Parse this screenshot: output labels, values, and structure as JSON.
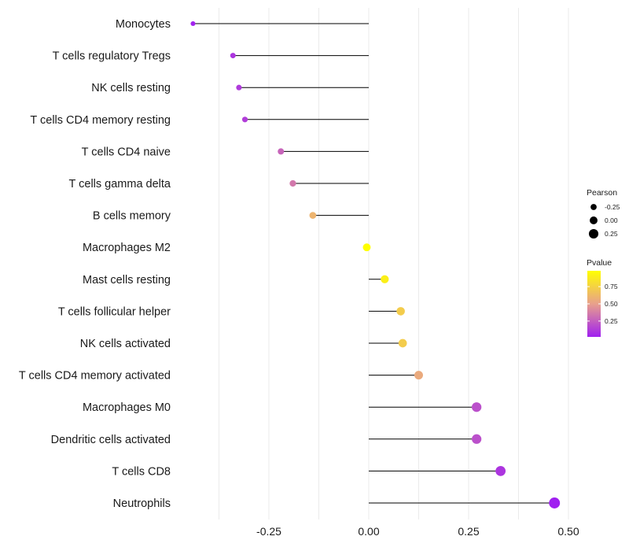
{
  "chart_data": {
    "type": "lollipop",
    "categories": [
      "Monocytes",
      "T cells regulatory  Tregs",
      "NK cells resting",
      "T cells CD4 memory resting",
      "T cells CD4 naive",
      "T cells gamma delta",
      "B cells memory",
      "Macrophages M2",
      "Mast cells resting",
      "T cells follicular helper",
      "NK cells activated",
      "T cells CD4 memory activated",
      "Macrophages M0",
      "Dendritic cells activated",
      "T cells CD8",
      "Neutrophils"
    ],
    "pearson": [
      -0.44,
      -0.34,
      -0.325,
      -0.31,
      -0.22,
      -0.19,
      -0.14,
      -0.005,
      0.04,
      0.08,
      0.085,
      0.125,
      0.27,
      0.27,
      0.33,
      0.465
    ],
    "pvalue": [
      0.03,
      0.1,
      0.12,
      0.13,
      0.28,
      0.35,
      0.6,
      0.98,
      0.9,
      0.72,
      0.72,
      0.55,
      0.2,
      0.2,
      0.1,
      0.02
    ],
    "xlim": [
      -0.5,
      0.5
    ],
    "x_ticks": [
      -0.25,
      0.0,
      0.25,
      0.5
    ],
    "x_tick_labels": [
      "-0.25",
      "0.00",
      "0.25",
      "0.50"
    ],
    "xlabel": "",
    "ylabel": "",
    "grid": true,
    "legend_position": "right",
    "size_legend": {
      "title": "Pearson",
      "entries": [
        {
          "value": -0.25,
          "label": "-0.25"
        },
        {
          "value": 0.0,
          "label": "0.00"
        },
        {
          "value": 0.25,
          "label": "0.25"
        }
      ]
    },
    "color_legend": {
      "title": "Pvalue",
      "ticks": [
        {
          "value": 0.75,
          "label": "0.75"
        },
        {
          "value": 0.5,
          "label": "0.50"
        },
        {
          "value": 0.25,
          "label": "0.25"
        }
      ],
      "range": [
        0.02,
        0.98
      ],
      "low_color": "#a020f0",
      "mid_color": "#e8a08c",
      "high_color": "#ffff00"
    },
    "stem_color": "#000000",
    "grid_color": "#ebebeb"
  }
}
